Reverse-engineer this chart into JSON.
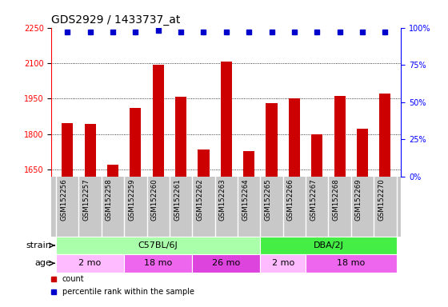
{
  "title": "GDS2929 / 1433737_at",
  "gsm_labels": [
    "GSM152256",
    "GSM152257",
    "GSM152258",
    "GSM152259",
    "GSM152260",
    "GSM152261",
    "GSM152262",
    "GSM152263",
    "GSM152264",
    "GSM152265",
    "GSM152266",
    "GSM152267",
    "GSM152268",
    "GSM152269",
    "GSM152270"
  ],
  "counts": [
    1845,
    1843,
    1672,
    1910,
    2092,
    1958,
    1735,
    2105,
    1730,
    1930,
    1950,
    1800,
    1960,
    1822,
    1970
  ],
  "percentile_ranks": [
    97,
    97,
    97,
    97,
    98,
    97,
    97,
    97,
    97,
    97,
    97,
    97,
    97,
    97,
    97
  ],
  "ylim_left": [
    1620,
    2250
  ],
  "ylim_right": [
    0,
    100
  ],
  "yticks_left": [
    1650,
    1800,
    1950,
    2100,
    2250
  ],
  "yticks_right": [
    0,
    25,
    50,
    75,
    100
  ],
  "bar_color": "#cc0000",
  "dot_color": "#0000cc",
  "strain_groups": [
    {
      "label": "C57BL/6J",
      "start": 0,
      "end": 9,
      "color": "#aaffaa"
    },
    {
      "label": "DBA/2J",
      "start": 9,
      "end": 15,
      "color": "#44ee44"
    }
  ],
  "age_groups": [
    {
      "label": "2 mo",
      "start": 0,
      "end": 3,
      "color": "#ffbbff"
    },
    {
      "label": "18 mo",
      "start": 3,
      "end": 6,
      "color": "#ee66ee"
    },
    {
      "label": "26 mo",
      "start": 6,
      "end": 9,
      "color": "#dd44dd"
    },
    {
      "label": "2 mo",
      "start": 9,
      "end": 11,
      "color": "#ffbbff"
    },
    {
      "label": "18 mo",
      "start": 11,
      "end": 15,
      "color": "#ee66ee"
    }
  ],
  "legend_count_label": "count",
  "legend_pct_label": "percentile rank within the sample",
  "gsm_bg_color": "#c8c8c8",
  "gsm_divider_color": "#ffffff",
  "plot_bg_color": "#ffffff",
  "grid_color": "#000000",
  "strain_label": "strain",
  "age_label": "age",
  "title_fontsize": 10,
  "axis_fontsize": 7,
  "label_fontsize": 8,
  "bar_width": 0.5
}
